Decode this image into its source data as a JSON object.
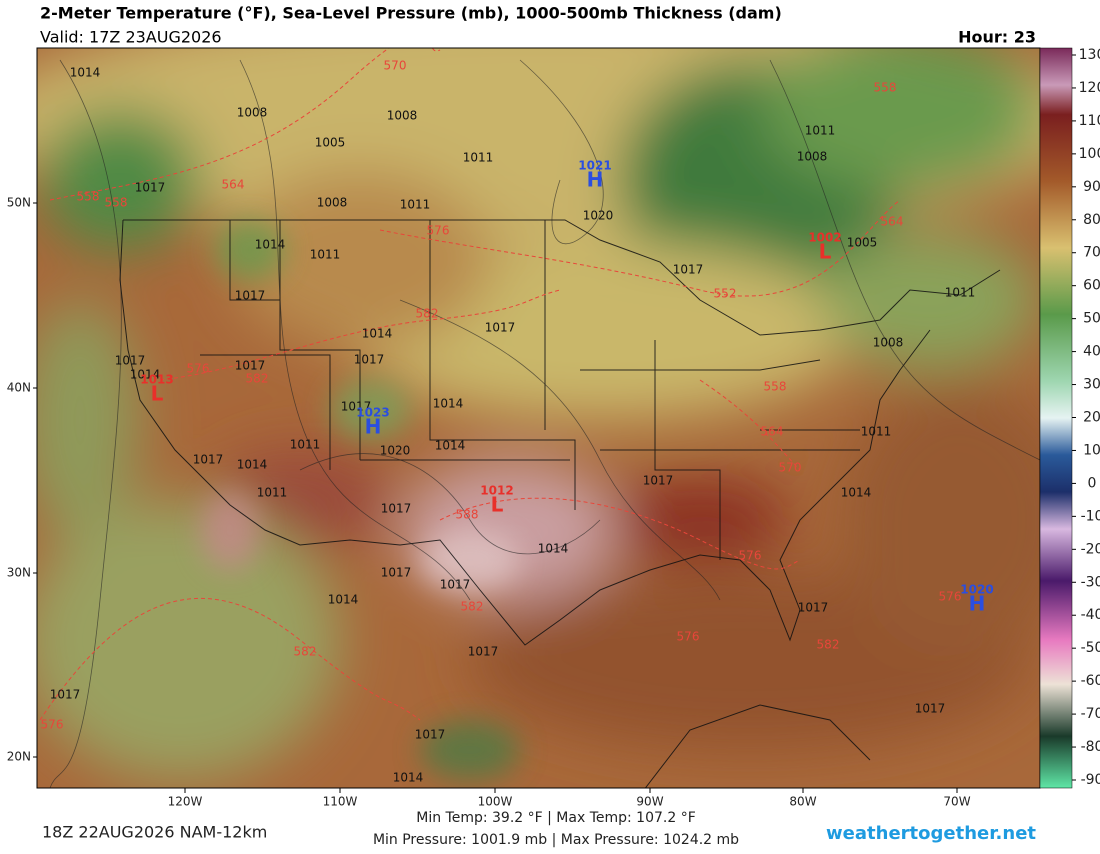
{
  "header": {
    "title": "2-Meter Temperature (°F), Sea-Level Pressure (mb), 1000-500mb Thickness (dam)",
    "valid": "Valid: 17Z 23AUG2026",
    "hour": "Hour: 23"
  },
  "map": {
    "lat_labels": [
      "50N",
      "40N",
      "30N",
      "20N"
    ],
    "lon_labels": [
      "120W",
      "110W",
      "100W",
      "90W",
      "80W",
      "70W"
    ],
    "pressure_labels": [
      1014,
      1008,
      1005,
      1008,
      1017,
      1008,
      1011,
      1011,
      1020,
      1014,
      1011,
      1017,
      1014,
      1017,
      1017,
      1011,
      1008,
      1005,
      1011,
      1008,
      1017,
      1014,
      1017,
      1017,
      1017,
      1014,
      1014,
      1011,
      1020,
      1017,
      1014,
      1011,
      1017,
      1017,
      1014,
      1014,
      1017,
      1017,
      1014,
      1017,
      1017,
      1017,
      1017,
      1017,
      1014,
      1011
    ],
    "thickness_labels": [
      570,
      558,
      564,
      558,
      558,
      576,
      564,
      582,
      552,
      576,
      582,
      558,
      564,
      570,
      588,
      582,
      576,
      576,
      582,
      576,
      576,
      582
    ],
    "highs": [
      {
        "symbol": "H",
        "pressure": "1021"
      },
      {
        "symbol": "H",
        "pressure": "1023"
      },
      {
        "symbol": "H",
        "pressure": "1020"
      }
    ],
    "lows": [
      {
        "symbol": "L",
        "pressure": "1002"
      },
      {
        "symbol": "L",
        "pressure": "1013"
      },
      {
        "symbol": "L",
        "pressure": "1012"
      }
    ]
  },
  "colorbar": {
    "ticks": [
      130,
      120,
      110,
      100,
      90,
      80,
      70,
      60,
      50,
      40,
      30,
      20,
      10,
      0,
      -10,
      -20,
      -30,
      -40,
      -50,
      -60,
      -70,
      -80,
      -90
    ]
  },
  "footer": {
    "run": "18Z 22AUG2026 NAM-12km",
    "temps": "Min Temp:  39.2 °F | Max Temp: 107.2 °F",
    "pressures": "Min Pressure: 1001.9 mb | Max Pressure: 1024.2 mb",
    "site": "weathertogether.net"
  }
}
